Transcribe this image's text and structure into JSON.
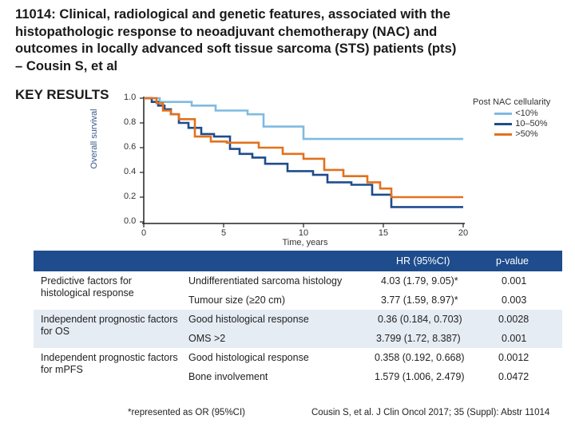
{
  "title": "11014: Clinical, radiological and genetic features, associated with the histopathologic response to neoadjuvant chemotherapy (NAC) and outcomes in locally advanced soft tissue sarcoma (STS) patients (pts) – Cousin S, et al",
  "key_results": "KEY RESULTS",
  "chart_data": {
    "type": "line",
    "step": true,
    "xlabel": "Time, years",
    "ylabel": "Overall survival",
    "xlim": [
      0,
      20
    ],
    "ylim": [
      0,
      1.0
    ],
    "x_ticks": [
      "0",
      "5",
      "10",
      "15",
      "20"
    ],
    "y_ticks": [
      "0.0",
      "0.2",
      "0.4",
      "0.6",
      "0.8",
      "1.0"
    ],
    "legend_title": "Post NAC cellularity",
    "series": [
      {
        "name": "<10%",
        "color": "#7fbbe0",
        "points": [
          [
            0,
            1.0
          ],
          [
            1.0,
            1.0
          ],
          [
            1.0,
            0.97
          ],
          [
            3.0,
            0.97
          ],
          [
            3.0,
            0.94
          ],
          [
            4.5,
            0.94
          ],
          [
            4.5,
            0.9
          ],
          [
            6.5,
            0.9
          ],
          [
            6.5,
            0.87
          ],
          [
            7.5,
            0.87
          ],
          [
            7.5,
            0.77
          ],
          [
            10.0,
            0.77
          ],
          [
            10.0,
            0.67
          ],
          [
            20.0,
            0.67
          ]
        ]
      },
      {
        "name": "10–50%",
        "color": "#1e4c8c",
        "points": [
          [
            0,
            1.0
          ],
          [
            0.5,
            1.0
          ],
          [
            0.5,
            0.97
          ],
          [
            0.9,
            0.97
          ],
          [
            0.9,
            0.94
          ],
          [
            1.3,
            0.94
          ],
          [
            1.3,
            0.91
          ],
          [
            1.7,
            0.91
          ],
          [
            1.7,
            0.87
          ],
          [
            2.2,
            0.87
          ],
          [
            2.2,
            0.8
          ],
          [
            2.8,
            0.8
          ],
          [
            2.8,
            0.76
          ],
          [
            3.6,
            0.76
          ],
          [
            3.6,
            0.71
          ],
          [
            4.4,
            0.71
          ],
          [
            4.4,
            0.69
          ],
          [
            5.4,
            0.69
          ],
          [
            5.4,
            0.59
          ],
          [
            6.0,
            0.59
          ],
          [
            6.0,
            0.55
          ],
          [
            6.8,
            0.55
          ],
          [
            6.8,
            0.52
          ],
          [
            7.6,
            0.52
          ],
          [
            7.6,
            0.47
          ],
          [
            9.0,
            0.47
          ],
          [
            9.0,
            0.41
          ],
          [
            10.6,
            0.41
          ],
          [
            10.6,
            0.38
          ],
          [
            11.5,
            0.38
          ],
          [
            11.5,
            0.32
          ],
          [
            13.0,
            0.32
          ],
          [
            13.0,
            0.3
          ],
          [
            14.3,
            0.3
          ],
          [
            14.3,
            0.22
          ],
          [
            15.5,
            0.22
          ],
          [
            15.5,
            0.12
          ],
          [
            20.0,
            0.12
          ]
        ]
      },
      {
        "name": ">50%",
        "color": "#e2711d",
        "points": [
          [
            0,
            1.0
          ],
          [
            0.8,
            1.0
          ],
          [
            0.8,
            0.96
          ],
          [
            1.2,
            0.96
          ],
          [
            1.2,
            0.9
          ],
          [
            1.7,
            0.9
          ],
          [
            1.7,
            0.87
          ],
          [
            2.2,
            0.87
          ],
          [
            2.2,
            0.83
          ],
          [
            3.2,
            0.83
          ],
          [
            3.2,
            0.69
          ],
          [
            4.2,
            0.69
          ],
          [
            4.2,
            0.65
          ],
          [
            5.2,
            0.65
          ],
          [
            5.2,
            0.64
          ],
          [
            7.2,
            0.64
          ],
          [
            7.2,
            0.6
          ],
          [
            8.7,
            0.6
          ],
          [
            8.7,
            0.55
          ],
          [
            10.0,
            0.55
          ],
          [
            10.0,
            0.51
          ],
          [
            11.3,
            0.51
          ],
          [
            11.3,
            0.42
          ],
          [
            12.5,
            0.42
          ],
          [
            12.5,
            0.37
          ],
          [
            14.0,
            0.37
          ],
          [
            14.0,
            0.32
          ],
          [
            14.8,
            0.32
          ],
          [
            14.8,
            0.27
          ],
          [
            15.5,
            0.27
          ],
          [
            15.5,
            0.2
          ],
          [
            20.0,
            0.2
          ]
        ]
      }
    ]
  },
  "table": {
    "header_hr": "HR (95%CI)",
    "header_p": "p-value",
    "groups": [
      {
        "label": "Predictive factors for histological response",
        "rows": [
          {
            "factor": "Undifferentiated sarcoma histology",
            "hr": "4.03 (1.79, 9.05)*",
            "p": "0.001"
          },
          {
            "factor": "Tumour size (≥20 cm)",
            "hr": "3.77 (1.59, 8.97)*",
            "p": "0.003"
          }
        ]
      },
      {
        "label": "Independent prognostic factors for OS",
        "rows": [
          {
            "factor": "Good histological response",
            "hr": "0.36 (0.184, 0.703)",
            "p": "0.0028"
          },
          {
            "factor": "OMS >2",
            "hr": "3.799 (1.72, 8.387)",
            "p": "0.001"
          }
        ]
      },
      {
        "label": "Independent prognostic factors for mPFS",
        "rows": [
          {
            "factor": "Good histological response",
            "hr": "0.358 (0.192, 0.668)",
            "p": "0.0012"
          },
          {
            "factor": "Bone involvement",
            "hr": "1.579 (1.006, 2.479)",
            "p": "0.0472"
          }
        ]
      }
    ]
  },
  "footnote": "*represented as OR (95%CI)",
  "citation": "Cousin S, et al. J Clin Oncol 2017; 35 (Suppl): Abstr 11014"
}
